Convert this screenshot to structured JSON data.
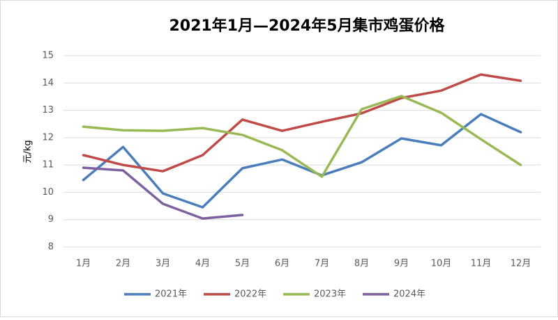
{
  "chart_data": {
    "type": "line",
    "title": "2021年1月—2024年5月集市鸡蛋价格",
    "y_label": "元/kg",
    "categories": [
      "1月",
      "2月",
      "3月",
      "4月",
      "5月",
      "6月",
      "7月",
      "8月",
      "9月",
      "10月",
      "11月",
      "12月"
    ],
    "series": [
      {
        "name": "2021年",
        "color": "#4a7ebb",
        "values": [
          10.45,
          11.66,
          9.96,
          9.45,
          10.88,
          11.2,
          10.62,
          11.1,
          11.97,
          11.72,
          12.86,
          12.2
        ]
      },
      {
        "name": "2022年",
        "color": "#be4b48",
        "values": [
          11.36,
          11.0,
          10.77,
          11.36,
          12.66,
          12.25,
          12.58,
          12.89,
          13.45,
          13.72,
          14.31,
          14.08
        ]
      },
      {
        "name": "2023年",
        "color": "#98b954",
        "values": [
          12.4,
          12.27,
          12.25,
          12.35,
          12.1,
          11.54,
          10.57,
          13.04,
          13.52,
          12.91,
          11.94,
          11.0
        ]
      },
      {
        "name": "2024年",
        "color": "#7d60a0",
        "values": [
          10.9,
          10.8,
          9.58,
          9.04,
          9.17,
          null,
          null,
          null,
          null,
          null,
          null,
          null
        ]
      }
    ],
    "ylim": [
      8,
      15
    ],
    "yticks": [
      8,
      9,
      10,
      11,
      12,
      13,
      14,
      15
    ],
    "grid": true,
    "legend": "bottom"
  }
}
